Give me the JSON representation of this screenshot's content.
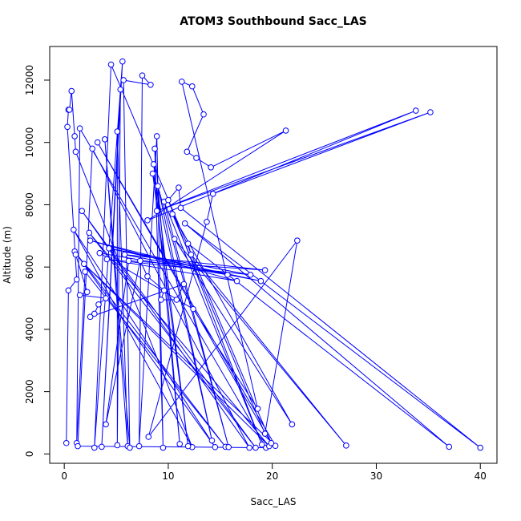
{
  "chart_data": {
    "type": "line",
    "title": "ATOM3 Southbound Sacc_LAS",
    "x_label": "Sacc_LAS",
    "y_label": "Altitude (m)",
    "xlim": [
      -1.4,
      41.6
    ],
    "ylim": [
      -300,
      13080
    ],
    "xticks": [
      0,
      10,
      20,
      30,
      40
    ],
    "yticks": [
      0,
      2000,
      4000,
      6000,
      8000,
      10000,
      12000
    ],
    "x": [
      0.2,
      0.4,
      1.2,
      0.3,
      0.4,
      0.5,
      0.7,
      1.0,
      1.1,
      12.3,
      0.9,
      14.5,
      1.0,
      15.5,
      2.0,
      1.2,
      1.5,
      19.4,
      1.3,
      2.7,
      17.8,
      1.7,
      18.4,
      2.4,
      19.7,
      1.9,
      20.3,
      3.2,
      19.9,
      4.5,
      2.9,
      5.6,
      3.6,
      5.4,
      5.1,
      5.1,
      6.1,
      3.9,
      6.3,
      5.7,
      8.3,
      7.5,
      7.2,
      8.9,
      9.5,
      8.7,
      11.1,
      8.6,
      11.9,
      8.5,
      14.2,
      9.0,
      15.8,
      9.6,
      19.0,
      10.0,
      11.0,
      11.2,
      40.0,
      11.6,
      37.0,
      11.9,
      12.2,
      27.1,
      10.6,
      21.9,
      10.4,
      19.3,
      22.4,
      8.1,
      13.7,
      14.3,
      35.2,
      8.9,
      33.8,
      8.0,
      21.3,
      14.1,
      12.7,
      11.8,
      13.4,
      12.3,
      11.3,
      18.6,
      12.4,
      3.4,
      15.7,
      2.5,
      16.6,
      4.1,
      17.9,
      4.3,
      18.9,
      5.8,
      19.3,
      6.2,
      4.0,
      7.3,
      8.0,
      9.6,
      9.3,
      10.8,
      11.5,
      2.5,
      2.9,
      3.3,
      4.0,
      1.5,
      2.2,
      1.1
    ],
    "series": [
      {
        "color": "#0000ff",
        "values": [
          350,
          5250,
          5600,
          10500,
          11050,
          11050,
          11650,
          10200,
          9700,
          220,
          7200,
          220,
          6500,
          230,
          5850,
          350,
          10450,
          200,
          250,
          9800,
          200,
          7800,
          200,
          7100,
          250,
          6100,
          260,
          10000,
          350,
          12500,
          200,
          12600,
          230,
          11700,
          280,
          10350,
          250,
          10100,
          200,
          12000,
          11850,
          12150,
          250,
          10200,
          200,
          9800,
          320,
          9300,
          250,
          9000,
          430,
          8600,
          220,
          8100,
          300,
          8150,
          8550,
          7900,
          200,
          7400,
          230,
          6750,
          6400,
          270,
          6900,
          950,
          7700,
          650,
          6850,
          550,
          7450,
          8350,
          10970,
          7800,
          11020,
          7500,
          10380,
          9200,
          9500,
          9700,
          10900,
          11800,
          11950,
          1450,
          4650,
          6450,
          5750,
          6850,
          5550,
          6250,
          5750,
          6600,
          5550,
          6400,
          5900,
          6200,
          950,
          6200,
          5700,
          5250,
          4950,
          4950,
          5450,
          4400,
          4500,
          4800,
          5000,
          5100,
          5200,
          6400
        ]
      }
    ]
  }
}
